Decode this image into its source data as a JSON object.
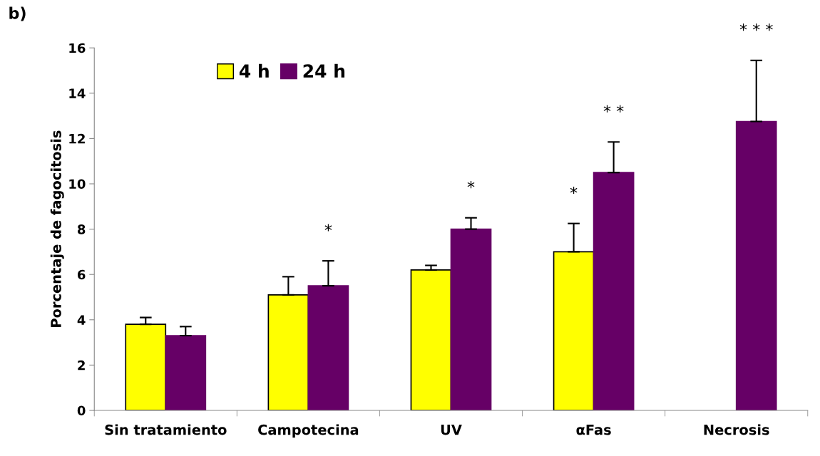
{
  "chart_data": {
    "type": "bar",
    "title": "b)",
    "ylabel": "Porcentaje de fagocitosis",
    "categories": [
      "Sin tratamiento",
      "Campotecina",
      "UV",
      "αFas",
      "Necrosis"
    ],
    "series": [
      {
        "name": "4 h",
        "color": "#ffff00",
        "values": [
          3.8,
          5.1,
          6.2,
          7.0,
          null
        ],
        "errors": [
          [
            3.8,
            4.1
          ],
          [
            5.1,
            5.9
          ],
          [
            6.2,
            6.4
          ],
          [
            7.0,
            8.25
          ],
          null
        ]
      },
      {
        "name": "24 h",
        "color": "#660066",
        "values": [
          3.3,
          5.5,
          8.0,
          10.5,
          12.75
        ],
        "errors": [
          [
            3.3,
            3.7
          ],
          [
            5.5,
            6.6
          ],
          [
            8.0,
            8.5
          ],
          [
            10.5,
            11.85
          ],
          [
            12.75,
            15.45
          ]
        ]
      }
    ],
    "ylim": [
      0,
      16
    ],
    "yticks": [
      0,
      2,
      4,
      6,
      8,
      10,
      12,
      14,
      16
    ],
    "grid": false,
    "legend": "top left",
    "annotations": [
      "*",
      "*",
      "*",
      "* *",
      "* * *"
    ]
  }
}
